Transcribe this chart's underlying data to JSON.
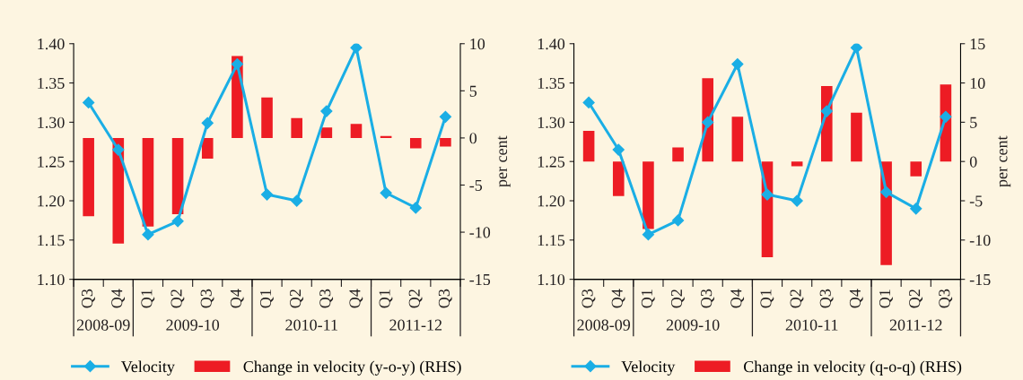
{
  "chart_data": [
    {
      "type": "bar",
      "categories": [
        "Q3",
        "Q4",
        "Q1",
        "Q2",
        "Q3",
        "Q4",
        "Q1",
        "Q2",
        "Q3",
        "Q4",
        "Q1",
        "Q2",
        "Q3"
      ],
      "series": [
        {
          "name": "Velocity",
          "type": "line",
          "color": "#1aaee5",
          "marker": "diamond",
          "values": [
            1.325,
            1.265,
            1.157,
            1.174,
            1.299,
            1.374,
            1.208,
            1.2,
            1.314,
            1.395,
            1.21,
            1.191,
            1.307
          ]
        },
        {
          "name": "Change in velocity (y-o-y) (RHS)",
          "axis": "y2",
          "color": "#ed1c24",
          "values": [
            -8.3,
            -11.2,
            -9.4,
            -8.1,
            -2.2,
            8.7,
            4.3,
            2.1,
            1.1,
            1.5,
            0.2,
            -1.1,
            -0.9
          ]
        }
      ],
      "ylim": [
        1.1,
        1.4
      ],
      "yticks": [
        {
          "value": 1.1,
          "label": "1.10"
        },
        {
          "value": 1.15,
          "label": "1.15"
        },
        {
          "value": 1.2,
          "label": "1.20"
        },
        {
          "value": 1.25,
          "label": "1.25"
        },
        {
          "value": 1.3,
          "label": "1.30"
        },
        {
          "value": 1.35,
          "label": "1.35"
        },
        {
          "value": 1.4,
          "label": "1.40"
        }
      ],
      "y2lim": [
        -15,
        10
      ],
      "y2ticks": [
        -15,
        -10,
        -5,
        0,
        5,
        10
      ],
      "y2label": "per cent",
      "annotations": [
        "2008-09",
        "2009-10",
        "2010-11",
        "2011-12"
      ],
      "legend": "bottom"
    },
    {
      "type": "bar",
      "categories": [
        "Q3",
        "Q4",
        "Q1",
        "Q2",
        "Q3",
        "Q4",
        "Q1",
        "Q2",
        "Q3",
        "Q4",
        "Q1",
        "Q2",
        "Q3"
      ],
      "series": [
        {
          "name": "Velocity",
          "type": "line",
          "color": "#1aaee5",
          "marker": "diamond",
          "values": [
            1.325,
            1.265,
            1.157,
            1.175,
            1.3,
            1.374,
            1.208,
            1.2,
            1.314,
            1.395,
            1.211,
            1.19,
            1.307
          ]
        },
        {
          "name": "Change in velocity (q-o-q) (RHS)",
          "axis": "y2",
          "color": "#ed1c24",
          "values": [
            3.9,
            -4.4,
            -8.6,
            1.8,
            10.6,
            5.7,
            -12.2,
            -0.6,
            9.6,
            6.2,
            -13.2,
            -1.9,
            9.8
          ]
        }
      ],
      "ylim": [
        1.1,
        1.4
      ],
      "yticks": [
        {
          "value": 1.1,
          "label": "1.10"
        },
        {
          "value": 1.15,
          "label": "1.15"
        },
        {
          "value": 1.2,
          "label": "1.20"
        },
        {
          "value": 1.25,
          "label": "1.25"
        },
        {
          "value": 1.3,
          "label": "1.30"
        },
        {
          "value": 1.35,
          "label": "1.35"
        },
        {
          "value": 1.4,
          "label": "1.40"
        }
      ],
      "y2lim": [
        -15,
        15
      ],
      "y2ticks": [
        -15,
        -10,
        -5,
        0,
        5,
        10,
        15
      ],
      "y2label": "per cent",
      "annotations": [
        "2008-09",
        "2009-10",
        "2010-11",
        "2011-12"
      ],
      "legend": "bottom"
    }
  ]
}
